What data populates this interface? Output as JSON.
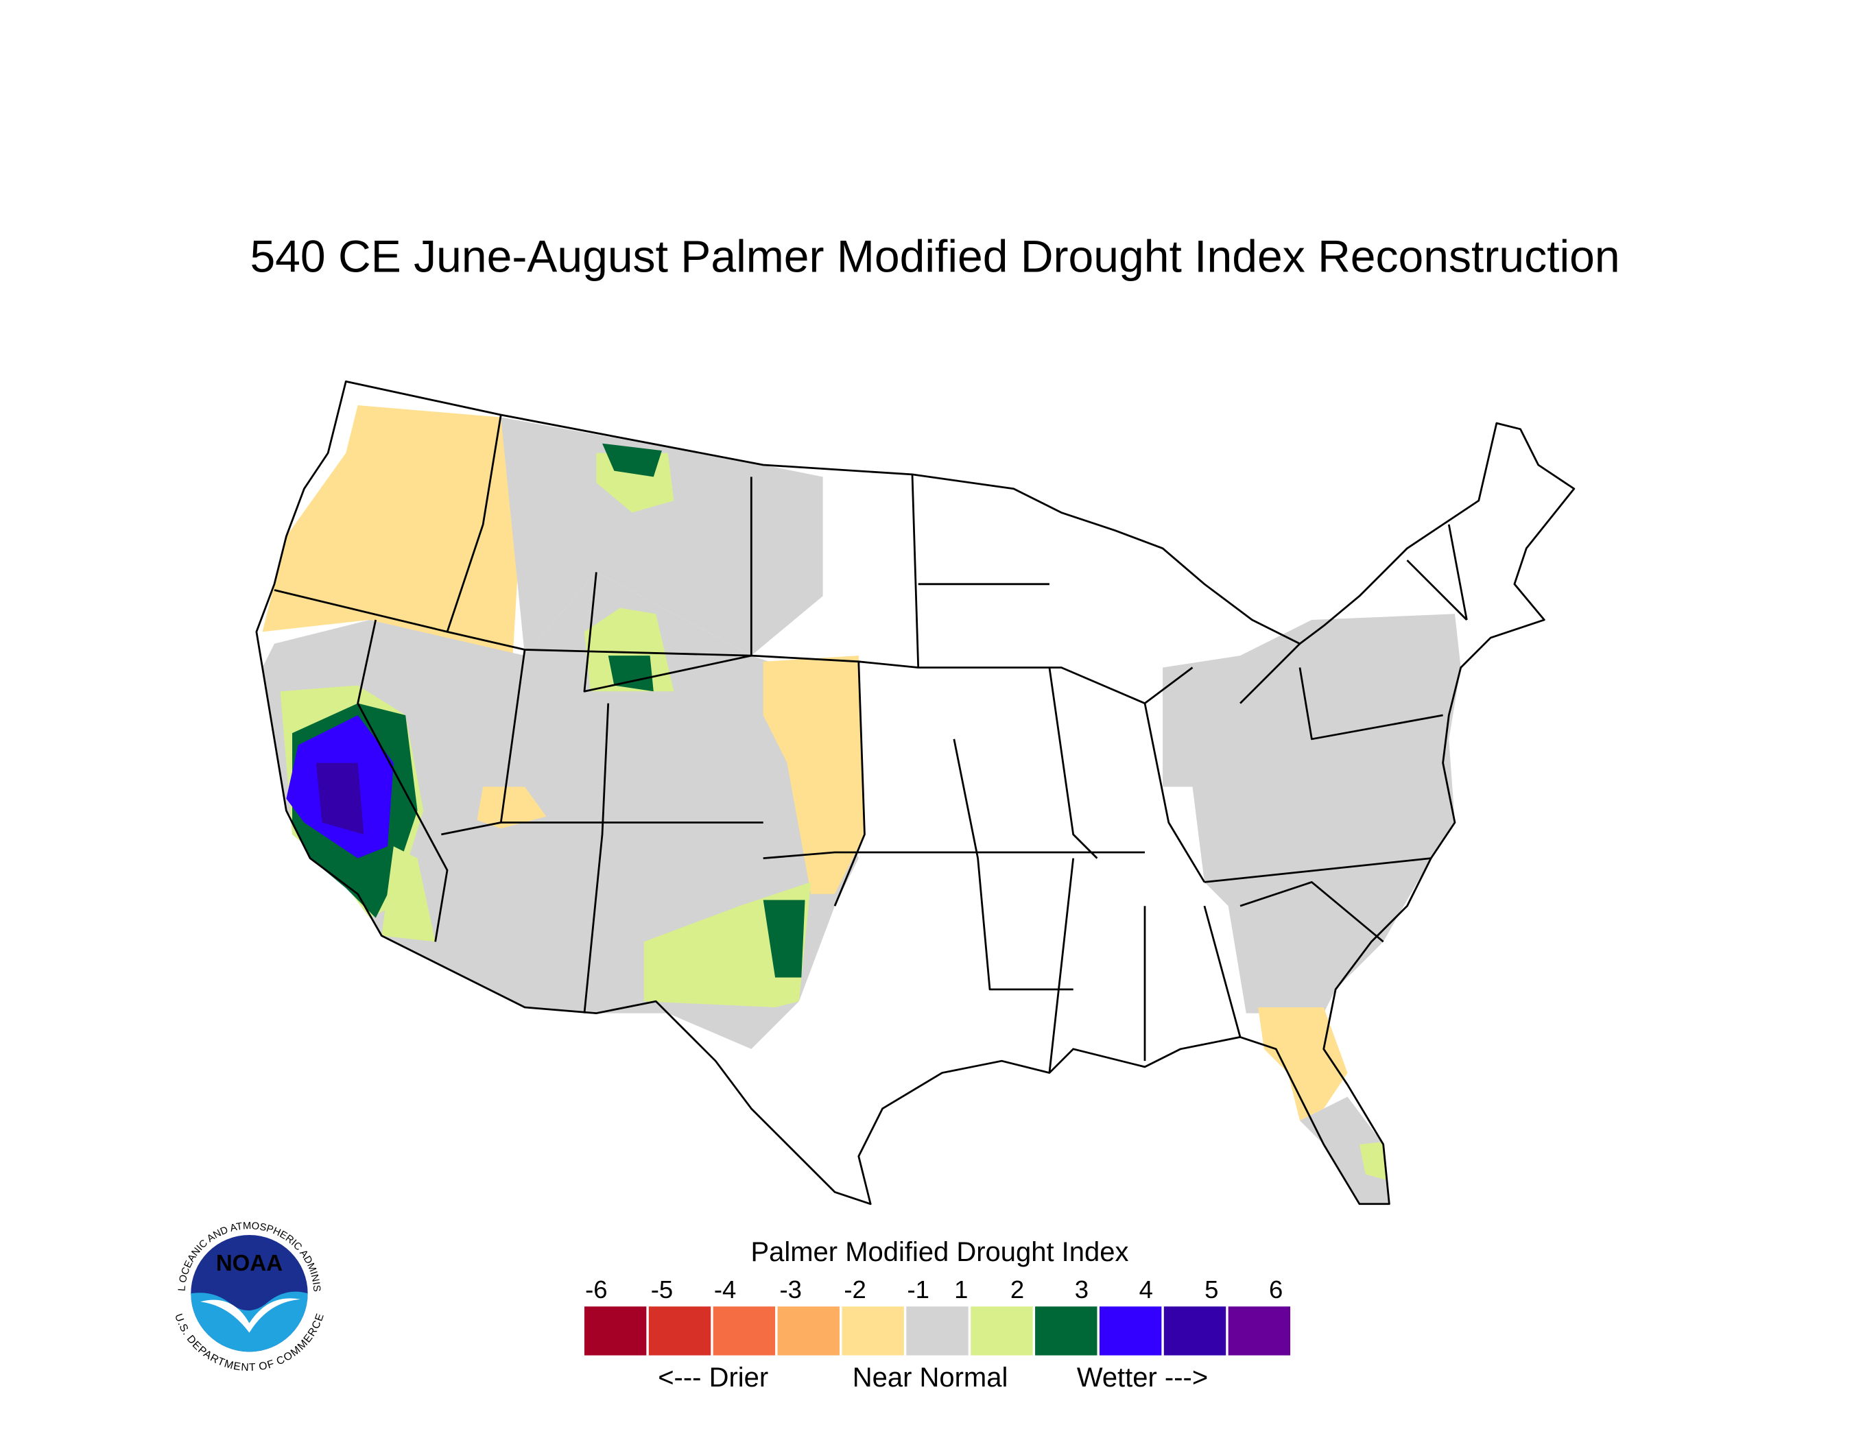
{
  "title": "540 CE  June-August  Palmer Modified Drought Index Reconstruction",
  "legend": {
    "title": "Palmer Modified Drought Index",
    "ticks": [
      -6,
      -5,
      -4,
      -3,
      -2,
      -1,
      1,
      2,
      3,
      4,
      5,
      6
    ],
    "colors": [
      "#a50026",
      "#d73027",
      "#f46d43",
      "#fdae61",
      "#fee090",
      "#d3d3d3",
      "#d9ef8b",
      "#006837",
      "#3300ff",
      "#3300aa",
      "#660099"
    ],
    "notes": [
      "<--- Drier",
      "Near Normal",
      "Wetter --->"
    ]
  },
  "logo": {
    "label": "NOAA",
    "ring_top": "NATIONAL OCEANIC AND ATMOSPHERIC ADMINISTRATION",
    "ring_bottom": "U.S. DEPARTMENT OF COMMERCE"
  }
}
